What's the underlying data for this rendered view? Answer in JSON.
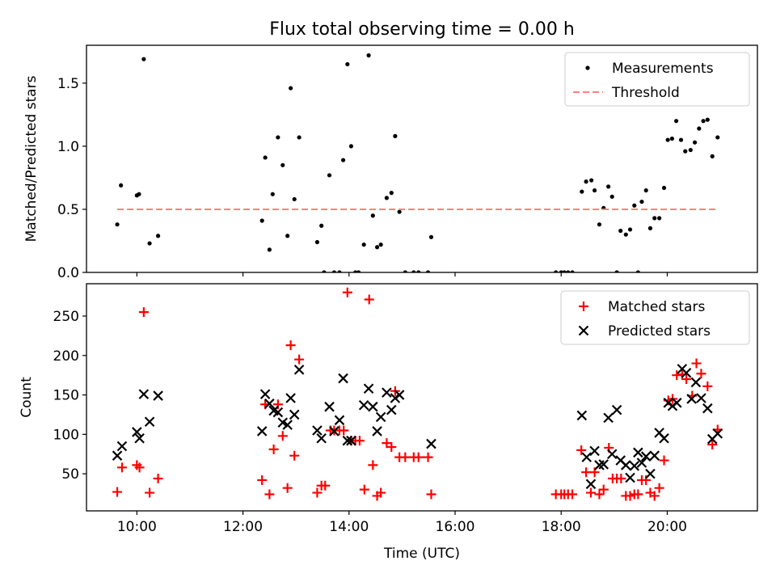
{
  "figure": {
    "title": "Flux total observing time = 0.00 h",
    "x_label": "Time (UTC)",
    "x_ticks": [
      {
        "value": 10,
        "label": "10:00"
      },
      {
        "value": 12,
        "label": "12:00"
      },
      {
        "value": 14,
        "label": "14:00"
      },
      {
        "value": 16,
        "label": "16:00"
      },
      {
        "value": 18,
        "label": "18:00"
      },
      {
        "value": 20,
        "label": "20:00"
      }
    ],
    "x_range": [
      9.05,
      21.7
    ]
  },
  "chart_data": [
    {
      "type": "scatter",
      "ylabel": "Matched/Predicted stars",
      "ylim": [
        0,
        1.8
      ],
      "y_ticks": [
        {
          "value": 0.0,
          "label": "0.0"
        },
        {
          "value": 0.5,
          "label": "0.5"
        },
        {
          "value": 1.0,
          "label": "1.0"
        },
        {
          "value": 1.5,
          "label": "1.5"
        }
      ],
      "legend": "top-right",
      "colors": {
        "measurements": "#000000",
        "threshold": "#ff7f7f"
      },
      "series": [
        {
          "name": "Measurements",
          "points": [
            [
              9.63,
              0.38
            ],
            [
              9.7,
              0.69
            ],
            [
              10.0,
              0.61
            ],
            [
              10.04,
              0.62
            ],
            [
              10.13,
              1.69
            ],
            [
              10.24,
              0.23
            ],
            [
              10.4,
              0.29
            ],
            [
              12.36,
              0.41
            ],
            [
              12.42,
              0.91
            ],
            [
              12.5,
              0.18
            ],
            [
              12.56,
              0.62
            ],
            [
              12.66,
              1.07
            ],
            [
              12.75,
              0.85
            ],
            [
              12.84,
              0.29
            ],
            [
              12.9,
              1.46
            ],
            [
              12.97,
              0.58
            ],
            [
              13.06,
              1.07
            ],
            [
              13.4,
              0.24
            ],
            [
              13.48,
              0.37
            ],
            [
              13.53,
              0.0
            ],
            [
              13.63,
              0.77
            ],
            [
              13.72,
              0.0
            ],
            [
              13.82,
              0.0
            ],
            [
              13.89,
              0.89
            ],
            [
              13.97,
              1.65
            ],
            [
              14.04,
              1.0
            ],
            [
              14.12,
              0.0
            ],
            [
              14.18,
              0.0
            ],
            [
              14.28,
              0.22
            ],
            [
              14.37,
              1.72
            ],
            [
              14.45,
              0.45
            ],
            [
              14.53,
              0.2
            ],
            [
              14.6,
              0.22
            ],
            [
              14.71,
              0.59
            ],
            [
              14.8,
              0.63
            ],
            [
              14.87,
              1.08
            ],
            [
              14.95,
              0.48
            ],
            [
              15.06,
              0.0
            ],
            [
              15.22,
              0.0
            ],
            [
              15.31,
              0.0
            ],
            [
              15.49,
              0.0
            ],
            [
              15.55,
              0.28
            ],
            [
              17.9,
              0.0
            ],
            [
              18.0,
              0.0
            ],
            [
              18.06,
              0.0
            ],
            [
              18.13,
              0.0
            ],
            [
              18.21,
              0.0
            ],
            [
              18.39,
              0.64
            ],
            [
              18.47,
              0.72
            ],
            [
              18.57,
              0.73
            ],
            [
              18.63,
              0.65
            ],
            [
              18.72,
              0.38
            ],
            [
              18.8,
              0.51
            ],
            [
              18.89,
              0.68
            ],
            [
              18.96,
              0.6
            ],
            [
              19.05,
              0.0
            ],
            [
              19.12,
              0.33
            ],
            [
              19.22,
              0.3
            ],
            [
              19.3,
              0.34
            ],
            [
              19.38,
              0.53
            ],
            [
              19.45,
              0.0
            ],
            [
              19.52,
              0.56
            ],
            [
              19.6,
              0.65
            ],
            [
              19.68,
              0.35
            ],
            [
              19.76,
              0.43
            ],
            [
              19.85,
              0.43
            ],
            [
              19.94,
              0.67
            ],
            [
              20.01,
              1.05
            ],
            [
              20.09,
              1.06
            ],
            [
              20.17,
              1.2
            ],
            [
              20.26,
              1.05
            ],
            [
              20.34,
              0.96
            ],
            [
              20.44,
              0.97
            ],
            [
              20.52,
              1.03
            ],
            [
              20.6,
              1.14
            ],
            [
              20.68,
              1.2
            ],
            [
              20.76,
              1.21
            ],
            [
              20.85,
              0.92
            ],
            [
              20.95,
              1.07
            ]
          ]
        },
        {
          "name": "Threshold",
          "style": "dashed",
          "points": [
            [
              9.63,
              0.5
            ],
            [
              20.95,
              0.5
            ]
          ]
        }
      ]
    },
    {
      "type": "scatter",
      "ylabel": "Count",
      "ylim": [
        3,
        291
      ],
      "y_ticks": [
        {
          "value": 50,
          "label": "50"
        },
        {
          "value": 100,
          "label": "100"
        },
        {
          "value": 150,
          "label": "150"
        },
        {
          "value": 200,
          "label": "200"
        },
        {
          "value": 250,
          "label": "250"
        }
      ],
      "legend": "top-right",
      "colors": {
        "matched": "#ff0000",
        "predicted": "#000000"
      },
      "series": [
        {
          "name": "Matched stars",
          "marker": "plus",
          "points": [
            [
              9.63,
              27
            ],
            [
              9.72,
              58
            ],
            [
              10.0,
              61
            ],
            [
              10.05,
              58
            ],
            [
              10.13,
              255
            ],
            [
              10.24,
              26
            ],
            [
              10.4,
              44
            ],
            [
              12.36,
              42
            ],
            [
              12.42,
              138
            ],
            [
              12.5,
              24
            ],
            [
              12.58,
              81
            ],
            [
              12.66,
              138
            ],
            [
              12.75,
              98
            ],
            [
              12.84,
              32
            ],
            [
              12.9,
              213
            ],
            [
              12.97,
              73
            ],
            [
              13.06,
              195
            ],
            [
              13.4,
              26
            ],
            [
              13.48,
              35
            ],
            [
              13.55,
              35
            ],
            [
              13.65,
              105
            ],
            [
              13.72,
              105
            ],
            [
              13.82,
              105
            ],
            [
              13.9,
              105
            ],
            [
              13.97,
              280
            ],
            [
              14.04,
              92
            ],
            [
              14.12,
              92
            ],
            [
              14.2,
              92
            ],
            [
              14.29,
              30
            ],
            [
              14.38,
              271
            ],
            [
              14.45,
              61
            ],
            [
              14.53,
              22
            ],
            [
              14.6,
              26
            ],
            [
              14.71,
              89
            ],
            [
              14.8,
              84
            ],
            [
              14.87,
              155
            ],
            [
              14.95,
              71
            ],
            [
              15.06,
              71
            ],
            [
              15.22,
              71
            ],
            [
              15.31,
              71
            ],
            [
              15.49,
              71
            ],
            [
              15.55,
              24
            ],
            [
              17.9,
              24
            ],
            [
              18.0,
              24
            ],
            [
              18.06,
              24
            ],
            [
              18.13,
              24
            ],
            [
              18.21,
              24
            ],
            [
              18.38,
              80
            ],
            [
              18.47,
              52
            ],
            [
              18.56,
              26
            ],
            [
              18.63,
              52
            ],
            [
              18.72,
              24
            ],
            [
              18.8,
              30
            ],
            [
              18.9,
              83
            ],
            [
              18.97,
              44
            ],
            [
              19.05,
              44
            ],
            [
              19.13,
              44
            ],
            [
              19.22,
              22
            ],
            [
              19.3,
              22
            ],
            [
              19.38,
              24
            ],
            [
              19.45,
              24
            ],
            [
              19.52,
              42
            ],
            [
              19.6,
              42
            ],
            [
              19.68,
              26
            ],
            [
              19.76,
              22
            ],
            [
              19.85,
              32
            ],
            [
              19.94,
              67
            ],
            [
              20.02,
              143
            ],
            [
              20.1,
              145
            ],
            [
              20.18,
              175
            ],
            [
              20.28,
              176
            ],
            [
              20.36,
              170
            ],
            [
              20.47,
              149
            ],
            [
              20.55,
              190
            ],
            [
              20.64,
              177
            ],
            [
              20.76,
              161
            ],
            [
              20.85,
              87
            ],
            [
              20.95,
              106
            ]
          ]
        },
        {
          "name": "Predicted stars",
          "marker": "x",
          "points": [
            [
              9.63,
              73
            ],
            [
              9.72,
              85
            ],
            [
              10.0,
              103
            ],
            [
              10.05,
              95
            ],
            [
              10.13,
              151
            ],
            [
              10.24,
              116
            ],
            [
              10.4,
              149
            ],
            [
              12.36,
              104
            ],
            [
              12.42,
              151
            ],
            [
              12.5,
              139
            ],
            [
              12.58,
              130
            ],
            [
              12.66,
              128
            ],
            [
              12.75,
              115
            ],
            [
              12.84,
              112
            ],
            [
              12.9,
              146
            ],
            [
              12.97,
              125
            ],
            [
              13.06,
              182
            ],
            [
              13.4,
              105
            ],
            [
              13.48,
              95
            ],
            [
              13.63,
              135
            ],
            [
              13.72,
              104
            ],
            [
              13.82,
              118
            ],
            [
              13.89,
              171
            ],
            [
              13.97,
              92
            ],
            [
              14.04,
              92
            ],
            [
              14.28,
              137
            ],
            [
              14.37,
              158
            ],
            [
              14.45,
              135
            ],
            [
              14.53,
              104
            ],
            [
              14.6,
              122
            ],
            [
              14.71,
              153
            ],
            [
              14.8,
              131
            ],
            [
              14.87,
              146
            ],
            [
              14.95,
              150
            ],
            [
              15.55,
              88
            ],
            [
              18.39,
              124
            ],
            [
              18.48,
              71
            ],
            [
              18.56,
              37
            ],
            [
              18.63,
              79
            ],
            [
              18.72,
              61
            ],
            [
              18.8,
              62
            ],
            [
              18.89,
              121
            ],
            [
              18.96,
              75
            ],
            [
              19.05,
              131
            ],
            [
              19.12,
              67
            ],
            [
              19.22,
              61
            ],
            [
              19.3,
              45
            ],
            [
              19.38,
              60
            ],
            [
              19.45,
              77
            ],
            [
              19.52,
              64
            ],
            [
              19.6,
              72
            ],
            [
              19.68,
              50
            ],
            [
              19.76,
              73
            ],
            [
              19.85,
              102
            ],
            [
              19.94,
              95
            ],
            [
              20.02,
              140
            ],
            [
              20.1,
              136
            ],
            [
              20.18,
              140
            ],
            [
              20.28,
              183
            ],
            [
              20.36,
              178
            ],
            [
              20.46,
              145
            ],
            [
              20.54,
              166
            ],
            [
              20.64,
              146
            ],
            [
              20.76,
              133
            ],
            [
              20.85,
              94
            ],
            [
              20.95,
              101
            ]
          ]
        }
      ]
    }
  ]
}
